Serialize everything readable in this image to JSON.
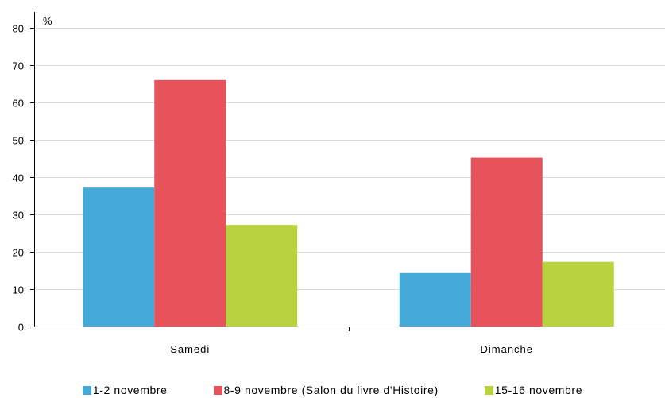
{
  "chart_data": {
    "type": "bar",
    "unit_label": "%",
    "categories": [
      "Samedi",
      "Dimanche"
    ],
    "series": [
      {
        "name": "1-2 novembre",
        "color": "#45a9d8",
        "values": [
          37.2,
          14.3
        ]
      },
      {
        "name": "8-9 novembre (Salon du livre d'Histoire)",
        "color": "#e8525a",
        "values": [
          66.0,
          45.2
        ]
      },
      {
        "name": "15-16 novembre",
        "color": "#b9d23f",
        "values": [
          27.2,
          17.3
        ]
      }
    ],
    "ylim": [
      0,
      80
    ],
    "yticks": [
      0,
      10,
      20,
      30,
      40,
      50,
      60,
      70,
      80
    ],
    "grid": true,
    "legend_position": "bottom"
  }
}
